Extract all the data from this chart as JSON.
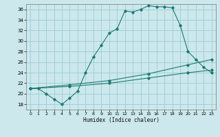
{
  "xlabel": "Humidex (Indice chaleur)",
  "bg_color": "#cce8ec",
  "grid_color": "#99ccd4",
  "line_color": "#1a7a6e",
  "xlim": [
    -0.5,
    23.5
  ],
  "ylim": [
    17,
    37
  ],
  "xticks": [
    0,
    1,
    2,
    3,
    4,
    5,
    6,
    7,
    8,
    9,
    10,
    11,
    12,
    13,
    14,
    15,
    16,
    17,
    18,
    19,
    20,
    21,
    22,
    23
  ],
  "yticks": [
    18,
    20,
    22,
    24,
    26,
    28,
    30,
    32,
    34,
    36
  ],
  "curve1_x": [
    0,
    1,
    2,
    3,
    4,
    5,
    6,
    7,
    8,
    9,
    10,
    11,
    12,
    13,
    14,
    15,
    16,
    17,
    18,
    19,
    20,
    21,
    22,
    23
  ],
  "curve1_y": [
    21.0,
    21.0,
    20.0,
    19.0,
    18.0,
    19.2,
    20.5,
    24.0,
    27.0,
    29.2,
    31.5,
    32.3,
    35.7,
    35.5,
    36.0,
    36.7,
    36.5,
    36.5,
    36.3,
    33.0,
    28.0,
    26.5,
    25.0,
    24.0
  ],
  "curve2_x": [
    0,
    5,
    10,
    15,
    20,
    23
  ],
  "curve2_y": [
    21.0,
    21.7,
    22.5,
    23.8,
    25.5,
    26.5
  ],
  "curve3_x": [
    0,
    5,
    10,
    15,
    20,
    23
  ],
  "curve3_y": [
    21.0,
    21.4,
    22.0,
    23.0,
    24.0,
    24.5
  ]
}
